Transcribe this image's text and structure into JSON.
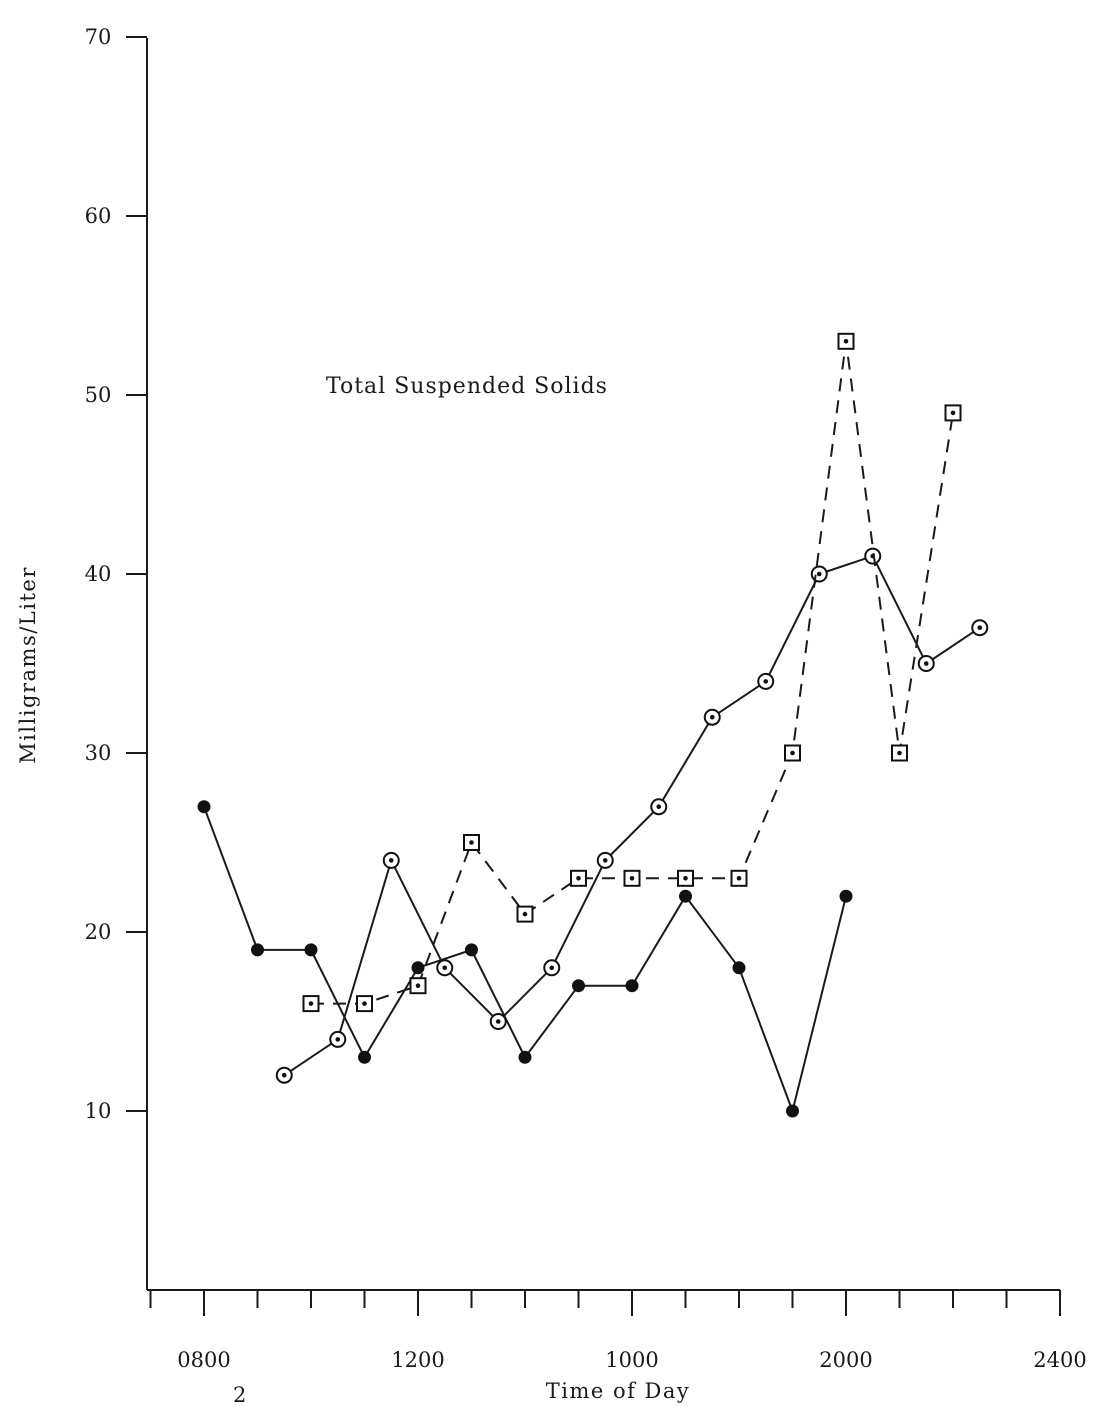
{
  "chart_data": {
    "type": "line",
    "annotation": "Total Suspended Solids",
    "xlabel": "Time of Day",
    "ylabel": "Milligrams/Liter",
    "x_sublabel": "2",
    "ylim": [
      0,
      70
    ],
    "y_ticks": [
      10,
      20,
      30,
      40,
      50,
      60,
      70
    ],
    "x_tick_labels": [
      {
        "label": "0800",
        "x": 0
      },
      {
        "label": "1200",
        "x": 4
      },
      {
        "label": "1000",
        "x": 8
      },
      {
        "label": "2000",
        "x": 12
      },
      {
        "label": "2400",
        "x": 16
      }
    ],
    "x_minor_tick_count": 17,
    "grid": false,
    "series": [
      {
        "marker": "filled-circle",
        "dashed": false,
        "points": [
          [
            0,
            27
          ],
          [
            1,
            19
          ],
          [
            2,
            19
          ],
          [
            3,
            13
          ],
          [
            4,
            18
          ],
          [
            5,
            19
          ],
          [
            6,
            13
          ],
          [
            7,
            17
          ],
          [
            8,
            17
          ],
          [
            9,
            22
          ],
          [
            10,
            18
          ],
          [
            11,
            10
          ],
          [
            12,
            22
          ]
        ]
      },
      {
        "marker": "circle-dot",
        "dashed": false,
        "points": [
          [
            1.5,
            12
          ],
          [
            2.5,
            14
          ],
          [
            3.5,
            24
          ],
          [
            4.5,
            18
          ],
          [
            5.5,
            15
          ],
          [
            6.5,
            18
          ],
          [
            7.5,
            24
          ],
          [
            8.5,
            27
          ],
          [
            9.5,
            32
          ],
          [
            10.5,
            34
          ],
          [
            11.5,
            40
          ],
          [
            12.5,
            41
          ],
          [
            13.5,
            35
          ],
          [
            14.5,
            37
          ]
        ]
      },
      {
        "marker": "square-dot",
        "dashed": true,
        "points": [
          [
            2,
            16
          ],
          [
            3,
            16
          ],
          [
            4,
            17
          ],
          [
            5,
            25
          ],
          [
            6,
            21
          ],
          [
            7,
            23
          ],
          [
            8,
            23
          ],
          [
            9,
            23
          ],
          [
            10,
            23
          ],
          [
            11,
            30
          ],
          [
            12,
            53
          ],
          [
            13,
            30
          ],
          [
            14,
            49
          ]
        ]
      }
    ]
  }
}
